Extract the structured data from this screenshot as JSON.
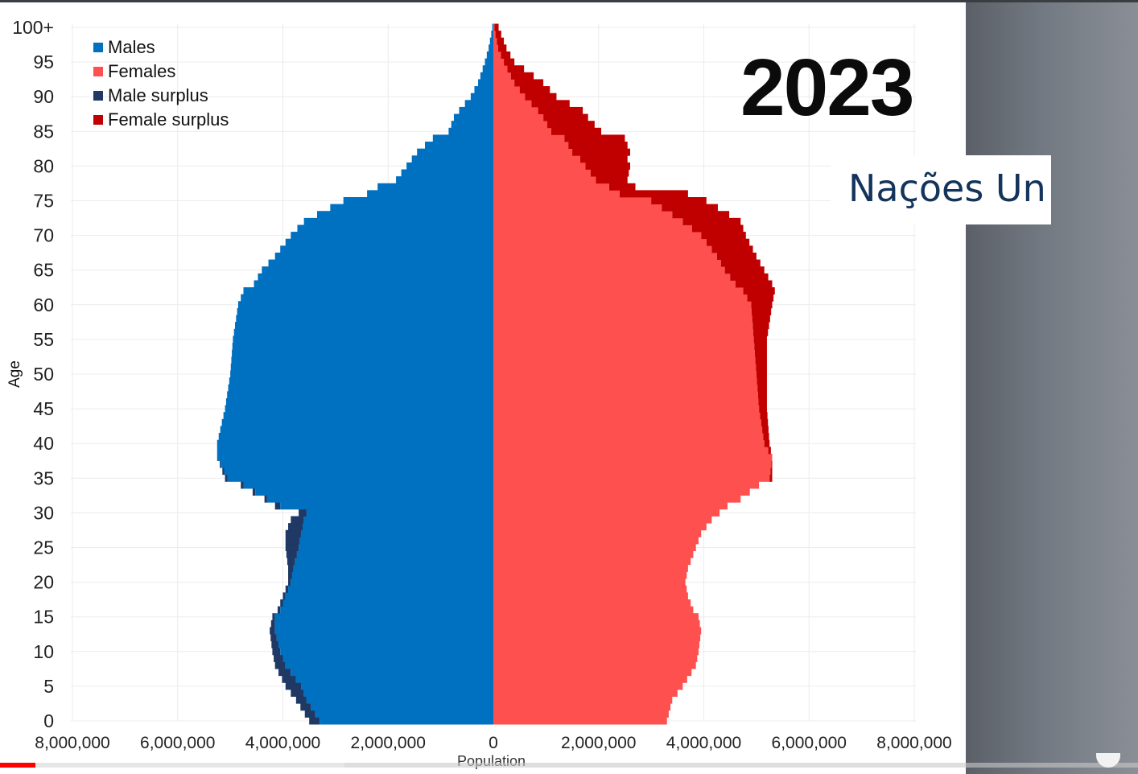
{
  "overlay": {
    "year": "2023",
    "organization": "Nações Un"
  },
  "video": {
    "played": 0.031,
    "buffered": 0.303
  },
  "colors": {
    "males": "#0070c0",
    "females": "#ff5050",
    "male_surplus": "#1f3864",
    "female_surplus": "#c00000"
  },
  "chart_data": {
    "type": "bar",
    "orientation": "horizontal",
    "title": "",
    "xlabel": "Population",
    "ylabel": "Age",
    "xlim": [
      -8000000,
      8000000
    ],
    "ylim": [
      0,
      100
    ],
    "grid": true,
    "legend_position": "top-left",
    "x_ticks": [
      -8000000,
      -6000000,
      -4000000,
      -2000000,
      0,
      2000000,
      4000000,
      6000000,
      8000000
    ],
    "x_tick_labels": [
      "8,000,000",
      "6,000,000",
      "4,000,000",
      "2,000,000",
      "0",
      "2,000,000",
      "4,000,000",
      "6,000,000",
      "8,000,000"
    ],
    "y_ticks": [
      0,
      5,
      10,
      15,
      20,
      25,
      30,
      35,
      40,
      45,
      50,
      55,
      60,
      65,
      70,
      75,
      80,
      85,
      90,
      95,
      100
    ],
    "y_tick_labels": [
      "0",
      "5",
      "10",
      "15",
      "20",
      "25",
      "30",
      "35",
      "40",
      "45",
      "50",
      "55",
      "60",
      "65",
      "70",
      "75",
      "80",
      "85",
      "90",
      "95",
      "100+"
    ],
    "legend": [
      "Males",
      "Females",
      "Male surplus",
      "Female surplus"
    ],
    "age_anchors": [
      0,
      3,
      5,
      8,
      10,
      13,
      15,
      16,
      18,
      20,
      22,
      25,
      27,
      29,
      30,
      31,
      32,
      34,
      35,
      38,
      40,
      45,
      50,
      55,
      60,
      62,
      63,
      65,
      67,
      70,
      72,
      75,
      76,
      77,
      78,
      80,
      81,
      82,
      84,
      85,
      87,
      88,
      90,
      92,
      95,
      97,
      99,
      100
    ],
    "males_anchor": [
      3300000,
      3550000,
      3650000,
      3950000,
      4050000,
      4150000,
      4150000,
      4050000,
      3950000,
      3850000,
      3800000,
      3700000,
      3650000,
      3600000,
      3550000,
      4050000,
      4300000,
      4750000,
      5050000,
      5250000,
      5250000,
      5100000,
      5000000,
      4950000,
      4850000,
      4750000,
      4550000,
      4400000,
      4150000,
      3850000,
      3600000,
      2850000,
      2400000,
      2200000,
      1850000,
      1650000,
      1550000,
      1450000,
      1150000,
      850000,
      750000,
      650000,
      430000,
      290000,
      160000,
      90000,
      40000,
      20000
    ],
    "females_anchor": [
      3300000,
      3400000,
      3600000,
      3850000,
      3900000,
      3950000,
      3900000,
      3800000,
      3700000,
      3650000,
      3700000,
      3850000,
      3950000,
      4150000,
      4300000,
      4450000,
      4700000,
      5050000,
      5250000,
      5300000,
      5150000,
      5050000,
      5000000,
      4950000,
      4900000,
      4750000,
      4600000,
      4400000,
      4250000,
      3950000,
      3600000,
      3000000,
      2400000,
      2200000,
      1950000,
      1750000,
      1650000,
      1500000,
      1350000,
      1100000,
      950000,
      850000,
      600000,
      400000,
      200000,
      90000,
      40000,
      20000
    ],
    "males_with_surplus_anchor": [
      3500000,
      3750000,
      3950000,
      4150000,
      4200000,
      4250000,
      4200000,
      4100000,
      4000000,
      3900000,
      3900000,
      3950000,
      3950000,
      3850000,
      3700000,
      4150000,
      4350000,
      4800000,
      5100000,
      5250000,
      5250000,
      5100000,
      5000000,
      4950000,
      4850000,
      4750000,
      4550000,
      4400000,
      4150000,
      3850000,
      3600000,
      2850000,
      2400000,
      2200000,
      1850000,
      1650000,
      1550000,
      1450000,
      1150000,
      850000,
      750000,
      650000,
      430000,
      290000,
      160000,
      90000,
      40000,
      20000
    ],
    "females_with_surplus_anchor": [
      3300000,
      3400000,
      3600000,
      3850000,
      3900000,
      3950000,
      3900000,
      3800000,
      3700000,
      3650000,
      3700000,
      3850000,
      3950000,
      4150000,
      4300000,
      4450000,
      4700000,
      5050000,
      5300000,
      5300000,
      5250000,
      5200000,
      5200000,
      5200000,
      5300000,
      5350000,
      5300000,
      5150000,
      5000000,
      4800000,
      4700000,
      4050000,
      3700000,
      2700000,
      2550000,
      2600000,
      2550000,
      2600000,
      2500000,
      2050000,
      1800000,
      1700000,
      1200000,
      950000,
      400000,
      250000,
      150000,
      100000
    ]
  }
}
